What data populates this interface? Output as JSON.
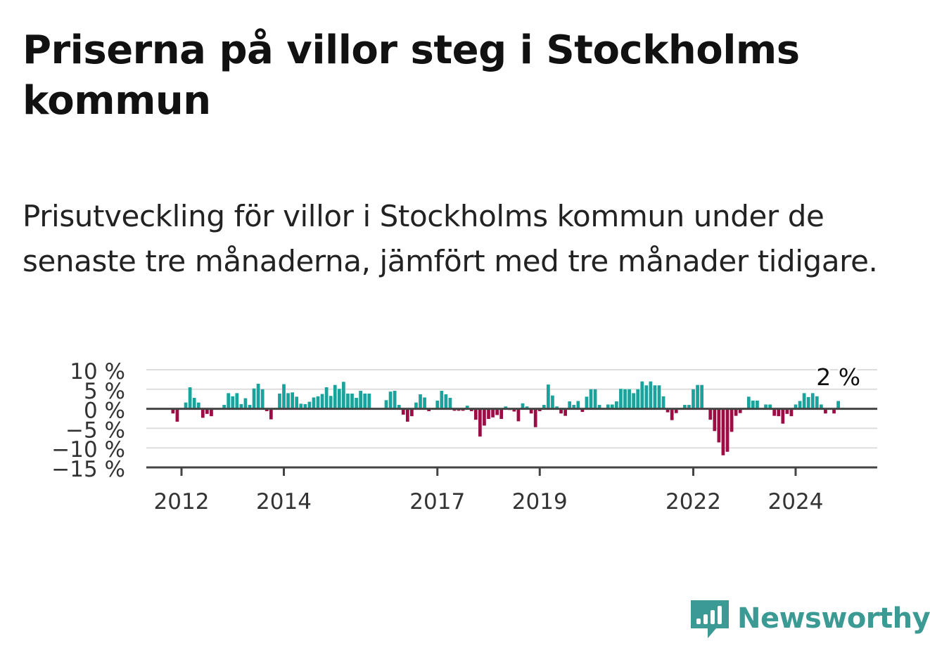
{
  "title": "Priserna på villor steg i Stockholms kommun",
  "subtitle": "Prisutveckling för villor i Stockholms kommun under de senaste tre månaderna, jämfört med tre månader tidigare.",
  "brand": {
    "name": "Newsworthy",
    "icon": "newsworthy-logo-icon",
    "color": "#3b9a93"
  },
  "colors": {
    "positive": "#1aa39c",
    "negative": "#9c0d45",
    "grid": "#dddddd",
    "axis": "#444444"
  },
  "chart_data": {
    "type": "bar",
    "start": {
      "year": 2011,
      "month": 11
    },
    "ylim": [
      -15,
      10
    ],
    "yticks": [
      10,
      5,
      0,
      -5,
      -10,
      -15
    ],
    "ytick_labels": [
      "10 %",
      "5 %",
      "0 %",
      "−5 %",
      "−10 %",
      "−15 %"
    ],
    "xtick_labels": [
      "2012",
      "2014",
      "2017",
      "2019",
      "2022",
      "2024"
    ],
    "annotation": "2 %",
    "grid": true,
    "values": [
      -1.2,
      -3.3,
      0.2,
      1.6,
      5.5,
      2.8,
      1.6,
      -2.3,
      -1.3,
      -1.9,
      0.1,
      0.1,
      1.0,
      4.0,
      3.2,
      4.0,
      1.2,
      2.7,
      1.0,
      5.2,
      6.4,
      5.0,
      -0.6,
      -2.7,
      0.1,
      3.9,
      6.3,
      4.0,
      4.2,
      3.1,
      1.3,
      1.2,
      1.8,
      2.9,
      3.2,
      3.8,
      5.5,
      3.3,
      6.1,
      5.1,
      6.9,
      3.9,
      3.9,
      2.8,
      4.6,
      3.9,
      3.9,
      0.1,
      0.1,
      0.1,
      2.2,
      4.4,
      4.6,
      1.0,
      -1.5,
      -3.3,
      -1.9,
      1.6,
      3.7,
      2.9,
      -0.6,
      0.1,
      2.1,
      4.6,
      3.7,
      2.8,
      -0.5,
      -0.5,
      -0.5,
      0.8,
      -0.6,
      -2.8,
      -7.1,
      -4.3,
      -2.6,
      -2.2,
      -1.6,
      -2.6,
      0.6,
      -0.3,
      -0.7,
      -3.2,
      1.4,
      0.6,
      -1.2,
      -4.7,
      -0.6,
      1.0,
      6.2,
      3.4,
      0.6,
      -1.2,
      -1.8,
      1.9,
      1.0,
      2.0,
      -0.8,
      3.1,
      5.0,
      5.0,
      1.0,
      0.1,
      1.1,
      1.1,
      1.9,
      5.1,
      5.0,
      5.0,
      4.0,
      5.0,
      7.0,
      6.0,
      7.0,
      6.0,
      6.0,
      3.2,
      -0.9,
      -2.9,
      -1.1,
      -0.2,
      1.0,
      1.0,
      5.0,
      6.1,
      6.1,
      -0.1,
      -2.8,
      -5.7,
      -8.6,
      -11.9,
      -11.0,
      -5.9,
      -1.8,
      -1.1,
      -0.2,
      3.1,
      2.1,
      2.1,
      -0.1,
      1.1,
      1.1,
      -1.8,
      -1.9,
      -3.8,
      -1.3,
      -1.9,
      1.1,
      2.0,
      4.0,
      3.0,
      4.0,
      3.2,
      1.1,
      -1.2,
      -0.2,
      -1.2,
      2.0
    ]
  }
}
